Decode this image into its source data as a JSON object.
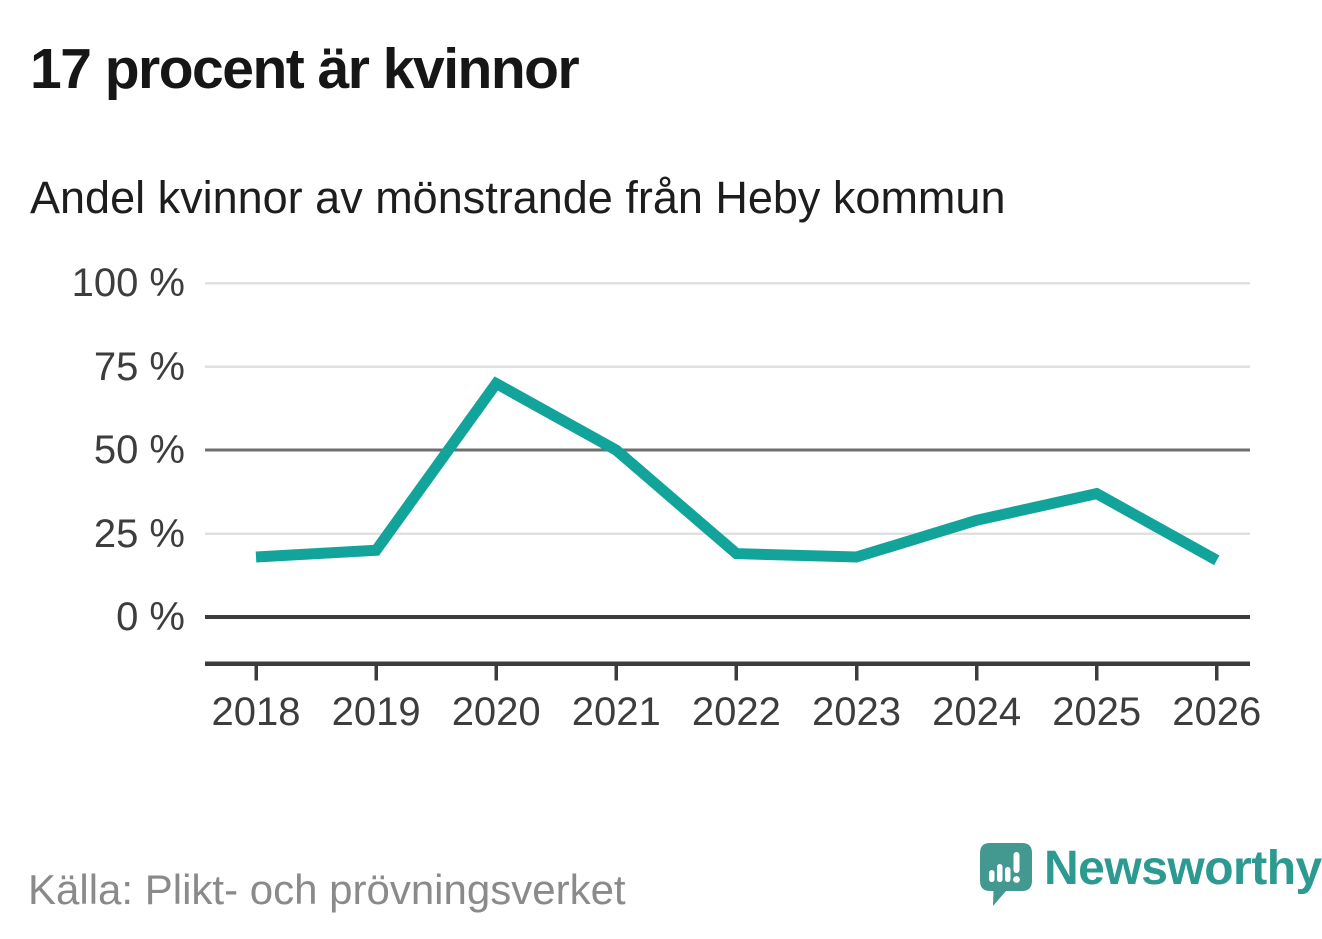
{
  "title": "17 procent är kvinnor",
  "subtitle": "Andel kvinnor av mönstrande från Heby kommun",
  "source": "Källa: Plikt- och prövningsverket",
  "brand": {
    "name": "Newsworthy",
    "icon": "newsworthy-chart-bubble-icon",
    "text_color": "#2c9a90",
    "icon_color": "#43998f"
  },
  "chart_data": {
    "type": "line",
    "title": "17 procent är kvinnor",
    "subtitle": "Andel kvinnor av mönstrande från Heby kommun",
    "x": [
      2018,
      2019,
      2020,
      2021,
      2022,
      2023,
      2024,
      2025,
      2026
    ],
    "series": [
      {
        "name": "Andel kvinnor av mönstrande",
        "values": [
          18,
          20,
          70,
          50,
          19,
          18,
          29,
          37,
          17
        ]
      }
    ],
    "xlabel": "",
    "ylabel": "",
    "ylim": [
      0,
      100
    ],
    "ytick_values": [
      100,
      75,
      50,
      25,
      0
    ],
    "ytick_labels": [
      "100 %",
      "75 %",
      "50 %",
      "25 %",
      "0 %"
    ],
    "grid": true,
    "legend_position": "none",
    "line_color": "#12a49b",
    "grid_color_light": "#e0e0e0",
    "grid_color_mid": "#6f6f6f",
    "axis_color": "#3c3c3c"
  }
}
